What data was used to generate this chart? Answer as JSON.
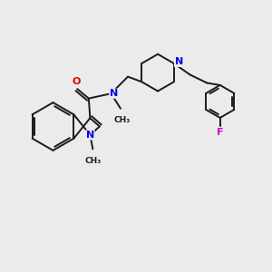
{
  "background_color": "#ebebeb",
  "bond_color": "#1a1a1a",
  "N_color": "#0000ee",
  "O_color": "#dd0000",
  "F_color": "#cc00bb",
  "line_width": 1.4,
  "font_size": 8.0,
  "figsize": [
    3.0,
    3.0
  ],
  "dpi": 100,
  "xlim": [
    0,
    10
  ],
  "ylim": [
    0,
    10
  ]
}
